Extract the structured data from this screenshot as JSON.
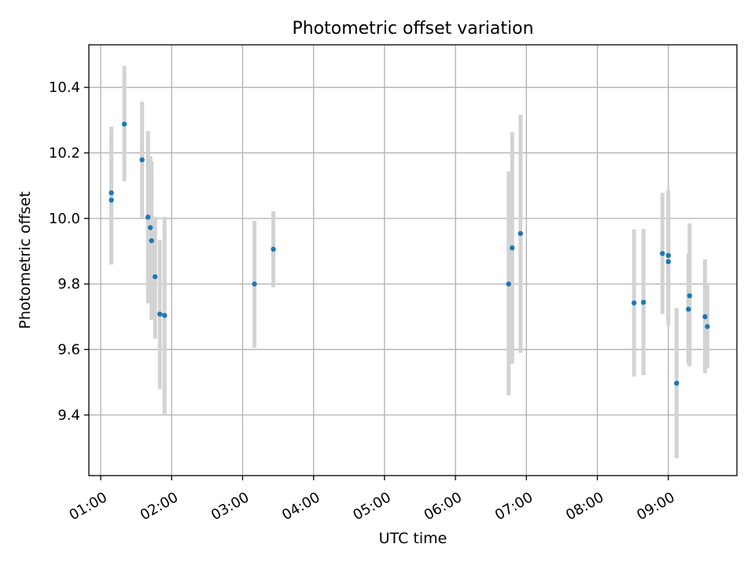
{
  "chart_data": {
    "type": "scatter",
    "title": "Photometric offset variation",
    "xlabel": "UTC time",
    "ylabel": "Photometric offset",
    "x_unit": "hours UTC",
    "xlim": [
      "00:50",
      "09:58"
    ],
    "ylim": [
      9.215,
      10.53
    ],
    "x_tick_labels": [
      "01:00",
      "02:00",
      "03:00",
      "04:00",
      "05:00",
      "06:00",
      "07:00",
      "08:00",
      "09:00"
    ],
    "y_ticks": [
      9.4,
      9.6,
      9.8,
      10.0,
      10.2,
      10.4
    ],
    "y_tick_labels": [
      "9.4",
      "9.6",
      "9.8",
      "10.0",
      "10.2",
      "10.4"
    ],
    "grid": true,
    "colors": {
      "points": "#1f77b4",
      "error_bars": "#d3d3d3",
      "grid": "#b0b0b0",
      "axes": "#000000"
    },
    "points": [
      {
        "t": "01:09",
        "y": 10.078,
        "lo": 9.86,
        "hi": 10.28
      },
      {
        "t": "01:09",
        "y": 10.056,
        "lo": 9.86,
        "hi": 10.255
      },
      {
        "t": "01:20",
        "y": 10.288,
        "lo": 10.113,
        "hi": 10.466
      },
      {
        "t": "01:35",
        "y": 10.179,
        "lo": 10.003,
        "hi": 10.356
      },
      {
        "t": "01:40",
        "y": 10.004,
        "lo": 9.741,
        "hi": 10.267
      },
      {
        "t": "01:42",
        "y": 9.972,
        "lo": 9.754,
        "hi": 10.19
      },
      {
        "t": "01:43",
        "y": 9.932,
        "lo": 9.69,
        "hi": 10.175
      },
      {
        "t": "01:46",
        "y": 9.822,
        "lo": 9.633,
        "hi": 10.005
      },
      {
        "t": "01:50",
        "y": 9.708,
        "lo": 9.48,
        "hi": 9.935
      },
      {
        "t": "01:54",
        "y": 9.704,
        "lo": 9.403,
        "hi": 10.005
      },
      {
        "t": "03:10",
        "y": 9.8,
        "lo": 9.605,
        "hi": 9.993
      },
      {
        "t": "03:26",
        "y": 9.906,
        "lo": 9.79,
        "hi": 10.022
      },
      {
        "t": "06:45",
        "y": 9.8,
        "lo": 9.46,
        "hi": 10.143
      },
      {
        "t": "06:48",
        "y": 9.91,
        "lo": 9.557,
        "hi": 10.263
      },
      {
        "t": "06:55",
        "y": 9.954,
        "lo": 9.59,
        "hi": 10.316
      },
      {
        "t": "08:31",
        "y": 9.742,
        "lo": 9.517,
        "hi": 9.966
      },
      {
        "t": "08:39",
        "y": 9.744,
        "lo": 9.522,
        "hi": 9.968
      },
      {
        "t": "08:55",
        "y": 9.893,
        "lo": 9.708,
        "hi": 10.078
      },
      {
        "t": "09:00",
        "y": 9.887,
        "lo": 9.688,
        "hi": 10.087
      },
      {
        "t": "09:00",
        "y": 9.868,
        "lo": 9.672,
        "hi": 10.065
      },
      {
        "t": "09:07",
        "y": 9.497,
        "lo": 9.268,
        "hi": 9.727
      },
      {
        "t": "09:17",
        "y": 9.723,
        "lo": 9.555,
        "hi": 9.892
      },
      {
        "t": "09:18",
        "y": 9.764,
        "lo": 9.548,
        "hi": 9.985
      },
      {
        "t": "09:31",
        "y": 9.7,
        "lo": 9.528,
        "hi": 9.875
      },
      {
        "t": "09:33",
        "y": 9.67,
        "lo": 9.543,
        "hi": 9.797
      }
    ]
  }
}
